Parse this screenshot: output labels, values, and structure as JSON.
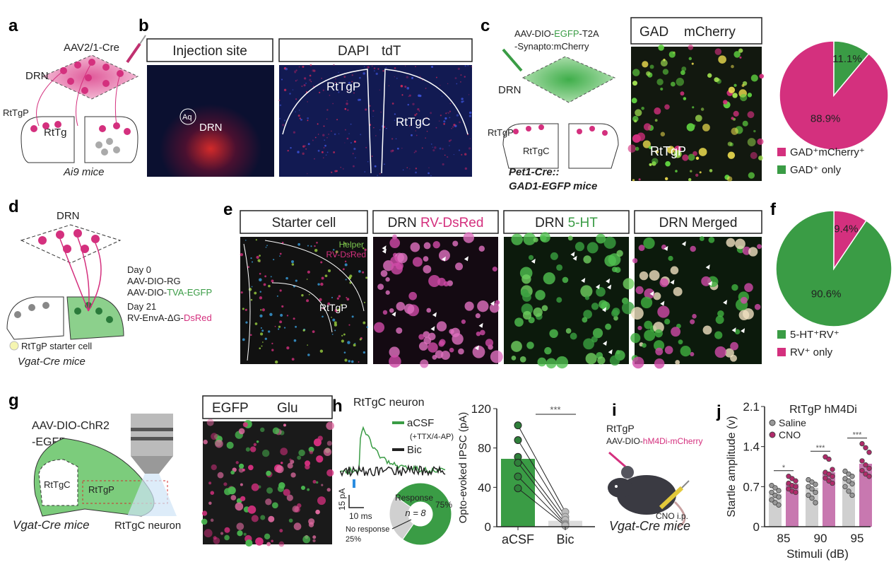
{
  "colors": {
    "magenta": "#d4307e",
    "green": "#3a9c45",
    "gray": "#d0d0d0",
    "dark": "#222222",
    "blue": "#2b6fd6",
    "pink_bar": "#c878b0"
  },
  "panel_a": {
    "letter": "a",
    "virus": "AAV2/1-Cre",
    "drn": "DRN",
    "rtgp": "RtTgP",
    "rtg": "RtTg",
    "mice": "Ai9 mice"
  },
  "panel_b": {
    "letter": "b",
    "box1": "Injection site",
    "box2_a": "DAPI",
    "box2_b": "tdT",
    "aq": "Aq",
    "drn": "DRN",
    "rtgp": "RtTgP",
    "rtgc": "RtTgC"
  },
  "panel_c": {
    "letter": "c",
    "virus_1a": "AAV-DIO-",
    "virus_1b": "EGFP",
    "virus_1c": "-T2A",
    "virus_2": "-Synapto:mCherry",
    "drn": "DRN",
    "rtgp": "RtTgP",
    "rtgc": "RtTgC",
    "mice_1": "Pet1-Cre::",
    "mice_2": "GAD1-EGFP mice",
    "box_a": "GAD",
    "box_b": "mCherry",
    "img_label": "RtTgP",
    "pie": {
      "slices": [
        {
          "label": "88.9%",
          "value": 88.9,
          "color": "#d4307e"
        },
        {
          "label": "11.1%",
          "value": 11.1,
          "color": "#3a9c45"
        }
      ],
      "legend": [
        {
          "text": "GAD⁺mCherry⁺",
          "color": "#d4307e"
        },
        {
          "text": "GAD⁺ only",
          "color": "#3a9c45"
        }
      ]
    }
  },
  "panel_d": {
    "letter": "d",
    "drn": "DRN",
    "day0": "Day 0",
    "v1": "AAV-DIO-RG",
    "v2a": "AAV-DIO-",
    "v2b": "TVA-EGFP",
    "day21": "Day 21",
    "v3a": "RV-EnvA-ΔG-",
    "v3b": "DsRed",
    "starter": "RtTgP starter cell",
    "mice": "Vgat-Cre mice"
  },
  "panel_e": {
    "letter": "e",
    "boxes": [
      {
        "a": "Starter cell",
        "b": ""
      },
      {
        "a": "DRN ",
        "b": "RV-DsRed"
      },
      {
        "a": "DRN ",
        "b": "5-HT"
      },
      {
        "a": "DRN Merged",
        "b": ""
      }
    ],
    "helper": "Helper",
    "rv": "RV-DsRed",
    "rtgp": "RtTgP"
  },
  "panel_f": {
    "letter": "f",
    "pie": {
      "slices": [
        {
          "label": "90.6%",
          "value": 90.6,
          "color": "#3a9c45"
        },
        {
          "label": "9.4%",
          "value": 9.4,
          "color": "#d4307e"
        }
      ],
      "legend": [
        {
          "text": "5-HT⁺RV⁺",
          "color": "#3a9c45"
        },
        {
          "text": "RV⁺ only",
          "color": "#d4307e"
        }
      ]
    }
  },
  "panel_g": {
    "letter": "g",
    "virus_1": "AAV-DIO-ChR2",
    "virus_2": "-EGFP",
    "rtgc": "RtTgC",
    "rtgp": "RtTgP",
    "mice": "Vgat-Cre mice",
    "neuron": "RtTgC neuron",
    "box_a": "EGFP",
    "box_b": "Glu"
  },
  "panel_h": {
    "letter": "h",
    "title": "RtTgC neuron",
    "legend": [
      {
        "text": "aCSF",
        "sub": "(+TTX/4-AP)",
        "color": "#3a9c45"
      },
      {
        "text": "Bic",
        "color": "#222222"
      }
    ],
    "scale_y": "15 pA",
    "scale_x": "10 ms",
    "donut": {
      "center": "n = 8",
      "slices": [
        {
          "label": "Response",
          "pct": "75%",
          "value": 75,
          "color": "#3a9c45"
        },
        {
          "label": "No response",
          "pct": "25%",
          "value": 25,
          "color": "#d0d0d0"
        }
      ]
    }
  },
  "chart_data": [
    {
      "type": "bar",
      "panel": "h",
      "ylabel": "Opto-evoked IPSC (pA)",
      "ylim": [
        0,
        120
      ],
      "yticks": [
        0,
        40,
        80,
        120
      ],
      "categories": [
        "aCSF",
        "Bic"
      ],
      "values": [
        69,
        6
      ],
      "paired_points": [
        [
          103,
          15
        ],
        [
          88,
          10
        ],
        [
          71,
          7
        ],
        [
          65,
          3
        ],
        [
          51,
          2
        ],
        [
          39,
          1
        ]
      ],
      "significance": "***"
    },
    {
      "type": "bar",
      "panel": "j",
      "title": "RtTgP hM4Di",
      "xlabel": "Stimuli (dB)",
      "ylabel": "Startle amplitude (v)",
      "ylim": [
        0,
        2.1
      ],
      "yticks": [
        "0",
        "0.7",
        "1.4",
        "2.1"
      ],
      "categories": [
        "85",
        "90",
        "95"
      ],
      "series": [
        {
          "name": "Saline",
          "color": "#d0d0d0",
          "values": [
            0.57,
            0.68,
            0.82
          ],
          "points": [
            [
              0.72,
              0.68,
              0.63,
              0.6,
              0.55,
              0.52,
              0.47,
              0.42,
              0.38
            ],
            [
              0.82,
              0.78,
              0.74,
              0.7,
              0.66,
              0.6,
              0.55,
              0.5,
              0.42
            ],
            [
              0.97,
              0.92,
              0.88,
              0.84,
              0.8,
              0.75,
              0.7,
              0.62,
              0.55
            ]
          ]
        },
        {
          "name": "CNO",
          "color": "#c878b0",
          "values": [
            0.75,
            0.95,
            1.1
          ],
          "points": [
            [
              0.88,
              0.84,
              0.8,
              0.76,
              0.72,
              0.7,
              0.66,
              0.62,
              0.6
            ],
            [
              1.22,
              1.18,
              1.0,
              0.95,
              0.92,
              0.88,
              0.85,
              0.8,
              0.76
            ],
            [
              1.45,
              1.38,
              1.3,
              1.15,
              1.08,
              1.02,
              0.98,
              0.92,
              0.88
            ]
          ]
        }
      ],
      "significance": [
        "*",
        "***",
        "***"
      ]
    }
  ],
  "panel_i": {
    "letter": "i",
    "region": "RtTgP",
    "virus_a": "AAV-DIO-",
    "virus_b": "hM4Di-mCherry",
    "cno": "CNO i.p.",
    "mice": "Vgat-Cre mice"
  },
  "panel_j": {
    "letter": "j"
  }
}
